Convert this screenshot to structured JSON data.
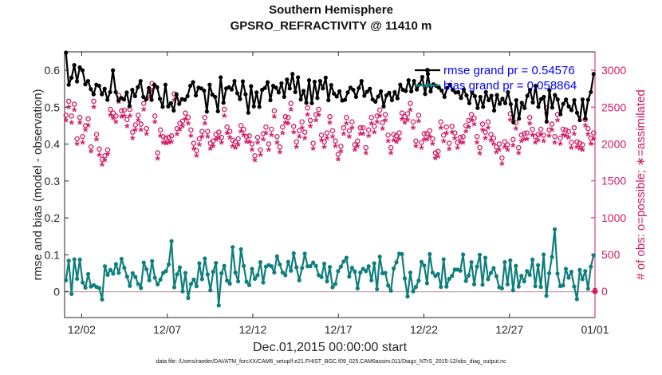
{
  "chart_data": {
    "type": "line",
    "title": "Southern Hemisphere",
    "subtitle": "GPSRO_REFRACTIVITY @ 11410 m",
    "xlabel": "Dec.01,2015 00:00:00 start",
    "ylabel_left": "rmse and bias (model - observation)",
    "ylabel_right": "# of obs: o=possible; ∗=assimilated",
    "xlim": [
      0,
      31
    ],
    "ylim_left": [
      -0.07,
      0.65
    ],
    "ylim_right": [
      -355,
      3250
    ],
    "x_ticks": [
      1,
      6,
      11,
      16,
      21,
      26,
      31
    ],
    "x_tick_labels": [
      "12/02",
      "12/07",
      "12/12",
      "12/17",
      "12/22",
      "12/27",
      "01/01"
    ],
    "y_ticks_left": [
      0,
      0.1,
      0.2,
      0.3,
      0.4,
      0.5,
      0.6
    ],
    "y_tick_labels_left": [
      "0",
      "0.1",
      "0.2",
      "0.3",
      "0.4",
      "0.5",
      "0.6"
    ],
    "y_ticks_right": [
      0,
      500,
      1000,
      1500,
      2000,
      2500,
      3000
    ],
    "y_tick_labels_right": [
      "0",
      "500",
      "1000",
      "1500",
      "2000",
      "2500",
      "3000"
    ],
    "legend": {
      "position": "top-right",
      "entries": [
        "rmse grand pr = 0.54576",
        "bias grand pr = 0.058864"
      ]
    },
    "colors": {
      "rmse": "#000000",
      "bias": "#0f7f7d",
      "count": "#d31a64",
      "legend_text": "#0000ff",
      "zero_line": "#c8a0a8"
    },
    "series": [
      {
        "name": "rmse",
        "axis": "left",
        "marker": "circle",
        "values": [
          0.648,
          0.561,
          0.58,
          0.614,
          0.57,
          0.608,
          0.6,
          0.562,
          0.571,
          0.549,
          0.535,
          0.561,
          0.558,
          0.535,
          0.55,
          0.52,
          0.541,
          0.6,
          0.541,
          0.518,
          0.525,
          0.521,
          0.54,
          0.503,
          0.547,
          0.53,
          0.554,
          0.571,
          0.528,
          0.521,
          0.552,
          0.52,
          0.561,
          0.554,
          0.523,
          0.501,
          0.561,
          0.502,
          0.511,
          0.491,
          0.535,
          0.509,
          0.522,
          0.52,
          0.53,
          0.558,
          0.568,
          0.532,
          0.553,
          0.551,
          0.545,
          0.488,
          0.561,
          0.534,
          0.528,
          0.489,
          0.581,
          0.512,
          0.551,
          0.554,
          0.548,
          0.571,
          0.538,
          0.522,
          0.57,
          0.535,
          0.485,
          0.557,
          0.502,
          0.54,
          0.501,
          0.547,
          0.552,
          0.568,
          0.519,
          0.558,
          0.553,
          0.54,
          0.565,
          0.528,
          0.575,
          0.551,
          0.59,
          0.541,
          0.581,
          0.521,
          0.544,
          0.512,
          0.573,
          0.511,
          0.569,
          0.525,
          0.571,
          0.551,
          0.58,
          0.519,
          0.56,
          0.537,
          0.529,
          0.543,
          0.518,
          0.52,
          0.54,
          0.553,
          0.547,
          0.528,
          0.552,
          0.571,
          0.531,
          0.542,
          0.55,
          0.521,
          0.515,
          0.529,
          0.543,
          0.502,
          0.532,
          0.539,
          0.519,
          0.541,
          0.524,
          0.561,
          0.547,
          0.544,
          0.573,
          0.543,
          0.571,
          0.548,
          0.562,
          0.582,
          0.536,
          0.59,
          0.543,
          0.562,
          0.558,
          0.553,
          0.545,
          0.528,
          0.552,
          0.561,
          0.547,
          0.54,
          0.541,
          0.525,
          0.548,
          0.532,
          0.511,
          0.54,
          0.53,
          0.498,
          0.528,
          0.501,
          0.541,
          0.519,
          0.531,
          0.491,
          0.533,
          0.509,
          0.523,
          0.511,
          0.541,
          0.508,
          0.459,
          0.519,
          0.469,
          0.512,
          0.498,
          0.531,
          0.547,
          0.513,
          0.558,
          0.501,
          0.522,
          0.528,
          0.461,
          0.546,
          0.499,
          0.533,
          0.521,
          0.481,
          0.509,
          0.521,
          0.502,
          0.492,
          0.519,
          0.485,
          0.465,
          0.521,
          0.469,
          0.52,
          0.541,
          0.59
        ]
      },
      {
        "name": "bias",
        "axis": "left",
        "marker": "circle",
        "values": [
          0.031,
          0.084,
          -0.006,
          0.088,
          0.035,
          0.087,
          0.025,
          0.011,
          0.048,
          0.014,
          0.018,
          0.013,
          0.01,
          -0.021,
          0.069,
          0.046,
          0.059,
          0.049,
          0.075,
          0.051,
          0.089,
          0.065,
          0.041,
          0.016,
          0.05,
          0.04,
          0.021,
          0.01,
          0.079,
          0.061,
          0.031,
          0.083,
          0.038,
          0.02,
          0.033,
          0.051,
          0.056,
          0.074,
          0.137,
          0.012,
          0.047,
          0.066,
          0.001,
          0.051,
          -0.017,
          0.021,
          0.033,
          0.015,
          0.077,
          0.034,
          0.09,
          0.047,
          0.004,
          0.054,
          0.078,
          -0.037,
          0.05,
          0.07,
          0.03,
          0.022,
          0.121,
          0.052,
          0.028,
          0.115,
          0.07,
          0.027,
          0.018,
          0.062,
          0.035,
          0.045,
          0.08,
          0.025,
          0.068,
          0.072,
          0.069,
          0.052,
          0.096,
          0.074,
          0.052,
          0.045,
          0.081,
          0.057,
          0.104,
          0.066,
          0.031,
          0.064,
          0.103,
          0.069,
          0.069,
          0.079,
          0.07,
          0.045,
          0.04,
          0.076,
          0.028,
          0.067,
          0.012,
          0.021,
          0.056,
          0.068,
          0.082,
          0.092,
          0.041,
          0.065,
          0.055,
          0.009,
          0.052,
          0.062,
          0.056,
          0.069,
          0.031,
          0.077,
          0.007,
          0.095,
          0.05,
          0.051,
          0.017,
          0.003,
          0.063,
          0.08,
          0.103,
          0.102,
          0.036,
          -0.013,
          0.052,
          0.001,
          0.013,
          0.03,
          0.081,
          0.071,
          0.023,
          0.102,
          0.052,
          0.043,
          0.048,
          0.013,
          0.088,
          0.014,
          0.035,
          0.043,
          0.06,
          0.06,
          0.057,
          0.101,
          0.029,
          0.044,
          0.08,
          0.02,
          0.068,
          0.1,
          0.019,
          0.092,
          0.034,
          0.051,
          0.064,
          0.042,
          0.012,
          0.009,
          0.08,
          0.02,
          0.085,
          0.004,
          0.07,
          0.014,
          0.043,
          0.028,
          0.056,
          0.046,
          0.087,
          0.015,
          0.072,
          0.013,
          0.101,
          -0.011,
          0.05,
          0.094,
          0.169,
          0.049,
          0.015,
          0.017,
          0.062,
          0.038,
          0.054,
          0.014,
          -0.02,
          0.059,
          0.034,
          0.056,
          0.008,
          0.068,
          0.099
        ]
      },
      {
        "name": "possible obs",
        "axis": "right",
        "marker": "o",
        "values": [
          2390,
          2580,
          2380,
          2540,
          2070,
          2360,
          2100,
          2250,
          2340,
          1960,
          2580,
          2130,
          1930,
          1790,
          1840,
          1920,
          2470,
          2420,
          2380,
          2660,
          2450,
          2460,
          2330,
          2470,
          2160,
          2260,
          2390,
          2270,
          2550,
          2210,
          2710,
          2820,
          2380,
          1880,
          2190,
          2100,
          2080,
          2090,
          2110,
          2680,
          2210,
          2280,
          2310,
          2420,
          2360,
          2190,
          2010,
          1910,
          2070,
          2170,
          2360,
          2170,
          2010,
          2040,
          2130,
          2160,
          2090,
          2470,
          2230,
          2170,
          2050,
          2030,
          2070,
          2250,
          2200,
          2100,
          2110,
          2000,
          1840,
          2090,
          1920,
          2140,
          2230,
          2000,
          2200,
          2450,
          2100,
          1960,
          2230,
          2370,
          2360,
          2550,
          2240,
          2030,
          2180,
          2300,
          2160,
          2490,
          2320,
          2010,
          2400,
          2470,
          2120,
          2030,
          2150,
          2370,
          2180,
          2040,
          1860,
          1970,
          2220,
          2360,
          2180,
          2300,
          1990,
          2040,
          2220,
          2220,
          1950,
          2190,
          2360,
          2240,
          2380,
          2460,
          2290,
          2400,
          2120,
          1950,
          2130,
          2110,
          2150,
          2420,
          2370,
          2410,
          2550,
          2300,
          2040,
          2390,
          2020,
          2140,
          2140,
          2180,
          2070,
          1880,
          1900,
          2300,
          2120,
          2230,
          2010,
          2240,
          2150,
          2020,
          2090,
          2100,
          2250,
          2320,
          2400,
          2350,
          2100,
          1950,
          2270,
          2160,
          2300,
          2130,
          2080,
          1960,
          2000,
          1810,
          2030,
          1990,
          2410,
          2060,
          2290,
          1950,
          2120,
          2140,
          2150,
          2360,
          2200,
          2100,
          2130,
          2200,
          2120,
          2490,
          2190,
          2270,
          2100,
          2400,
          2080,
          2200,
          2190,
          2170,
          2020,
          2220,
          2030,
          2010,
          1990,
          2330,
          2210,
          2080,
          2150
        ]
      },
      {
        "name": "assimilated obs",
        "axis": "right",
        "marker": "*",
        "values": [
          2290,
          2470,
          2260,
          2430,
          1970,
          2260,
          1990,
          2160,
          2220,
          1870,
          2470,
          2030,
          1820,
          1690,
          1750,
          1830,
          2360,
          2320,
          2270,
          2540,
          2340,
          2350,
          2210,
          2350,
          2050,
          2160,
          2290,
          2160,
          2440,
          2110,
          2600,
          2700,
          2270,
          1770,
          2080,
          1990,
          1980,
          1990,
          2000,
          2570,
          2100,
          2170,
          2210,
          2310,
          2250,
          2080,
          1910,
          1810,
          1960,
          2070,
          2250,
          2070,
          1910,
          1940,
          2030,
          2050,
          1990,
          2350,
          2120,
          2060,
          1940,
          1920,
          1960,
          2140,
          2090,
          2000,
          2000,
          1890,
          1750,
          1990,
          1820,
          2030,
          2120,
          1890,
          2090,
          2340,
          1990,
          1860,
          2120,
          2260,
          2250,
          2440,
          2130,
          1930,
          2070,
          2190,
          2050,
          2370,
          2210,
          1910,
          2290,
          2360,
          2020,
          1930,
          2050,
          2260,
          2070,
          1940,
          1760,
          1870,
          2110,
          2250,
          2070,
          2190,
          1890,
          1940,
          2110,
          2110,
          1850,
          2080,
          2250,
          2130,
          2270,
          2350,
          2180,
          2290,
          2010,
          1850,
          2020,
          2000,
          2040,
          2310,
          2260,
          2300,
          2430,
          2190,
          1940,
          2280,
          1920,
          2030,
          2030,
          2070,
          1970,
          1780,
          1800,
          2190,
          2010,
          2120,
          1900,
          2130,
          2050,
          1920,
          1990,
          1990,
          2140,
          2200,
          2290,
          2240,
          1990,
          1840,
          2160,
          2050,
          2190,
          2020,
          1970,
          1860,
          1890,
          1700,
          1930,
          1890,
          2300,
          1950,
          2180,
          1850,
          2010,
          2030,
          2040,
          2250,
          2090,
          1990,
          2020,
          2090,
          2010,
          2380,
          2080,
          2160,
          1990,
          2290,
          1970,
          2090,
          2080,
          2060,
          1920,
          2110,
          1930,
          1910,
          1890,
          2220,
          2100,
          1970,
          2040
        ]
      }
    ],
    "footnote": "data file: /Users/raeder/DAI/ATM_forcXX/CAM6_setup/f.e21.FHIST_BGC.f09_025.CAM6assim.011/Diags_NTrS_2015-12/obs_diag_output.nc"
  }
}
